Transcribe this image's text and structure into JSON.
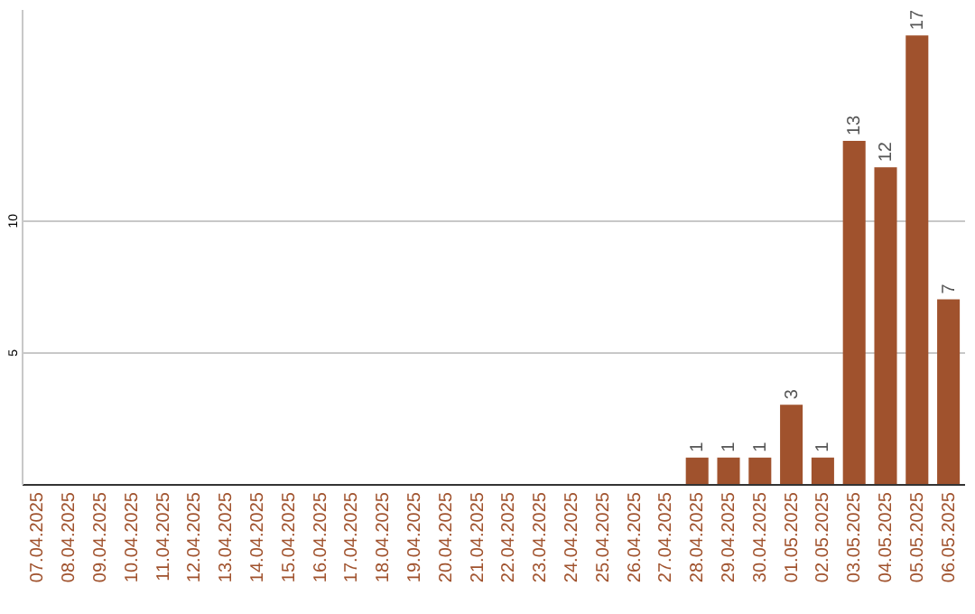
{
  "chart_data": {
    "type": "bar",
    "categories": [
      "07.04.2025",
      "08.04.2025",
      "09.04.2025",
      "10.04.2025",
      "11.04.2025",
      "12.04.2025",
      "13.04.2025",
      "14.04.2025",
      "15.04.2025",
      "16.04.2025",
      "17.04.2025",
      "18.04.2025",
      "19.04.2025",
      "20.04.2025",
      "21.04.2025",
      "22.04.2025",
      "23.04.2025",
      "24.04.2025",
      "25.04.2025",
      "26.04.2025",
      "27.04.2025",
      "28.04.2025",
      "29.04.2025",
      "30.04.2025",
      "01.05.2025",
      "02.05.2025",
      "03.05.2025",
      "04.05.2025",
      "05.05.2025",
      "06.05.2025"
    ],
    "values": [
      0,
      0,
      0,
      0,
      0,
      0,
      0,
      0,
      0,
      0,
      0,
      0,
      0,
      0,
      0,
      0,
      0,
      0,
      0,
      0,
      0,
      1,
      1,
      1,
      3,
      1,
      13,
      12,
      17,
      7
    ],
    "value_labels": [
      null,
      null,
      null,
      null,
      null,
      null,
      null,
      null,
      null,
      null,
      null,
      null,
      null,
      null,
      null,
      null,
      null,
      null,
      null,
      null,
      null,
      "1",
      "1",
      "1",
      "3",
      "1",
      "13",
      "12",
      "17",
      "7"
    ],
    "color": "#a0522d",
    "ylim": [
      0,
      18
    ],
    "yticks": [
      5,
      10
    ],
    "grid": "y"
  }
}
